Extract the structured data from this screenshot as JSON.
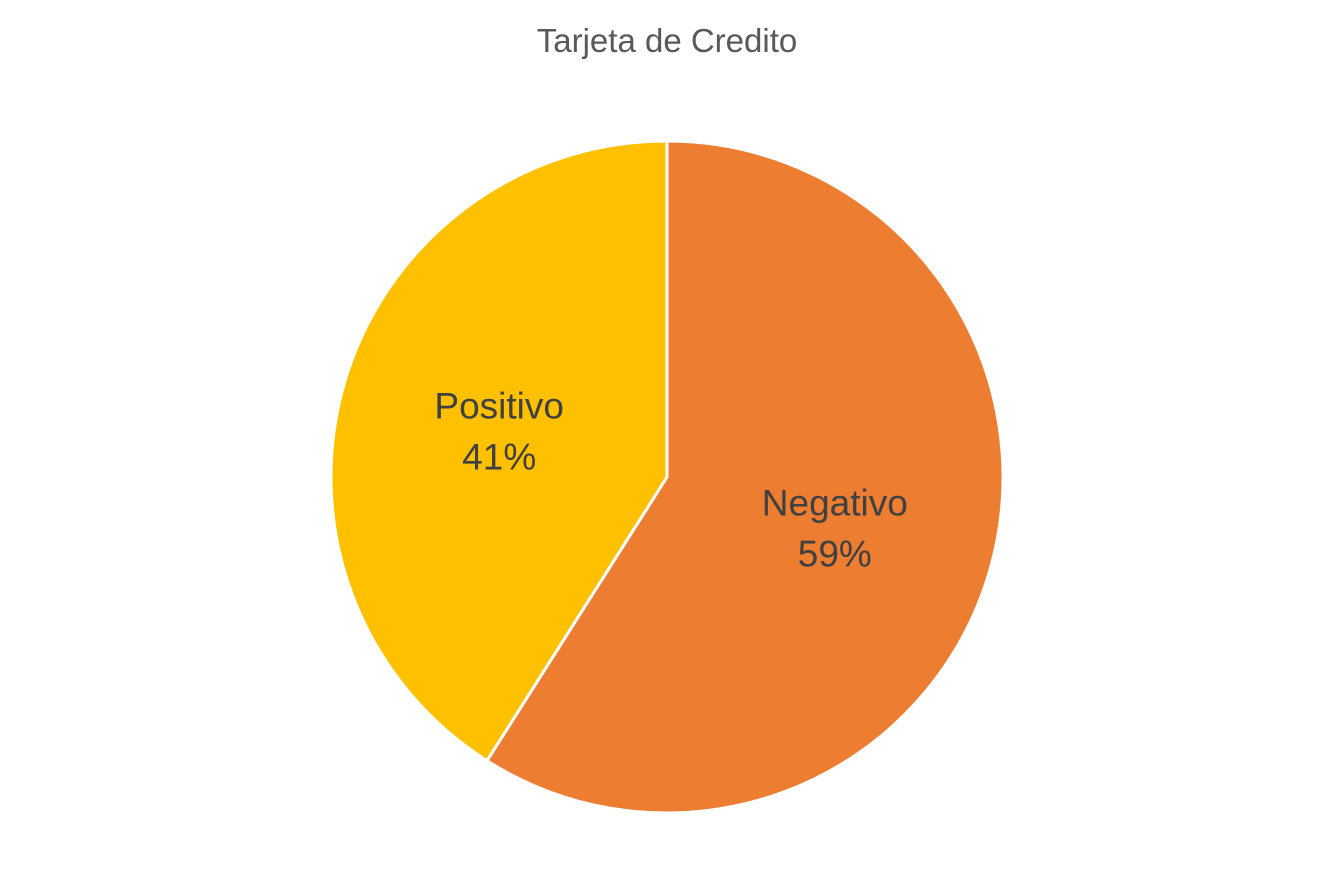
{
  "chart_data": {
    "type": "pie",
    "title": "Tarjeta de Credito",
    "slices": [
      {
        "name": "Negativo",
        "value": 59,
        "label": "59%",
        "color": "#ED7D31"
      },
      {
        "name": "Positivo",
        "value": 41,
        "label": "41%",
        "color": "#FFC000"
      }
    ],
    "legend": "none",
    "start_angle_deg": 0,
    "direction": "clockwise"
  }
}
